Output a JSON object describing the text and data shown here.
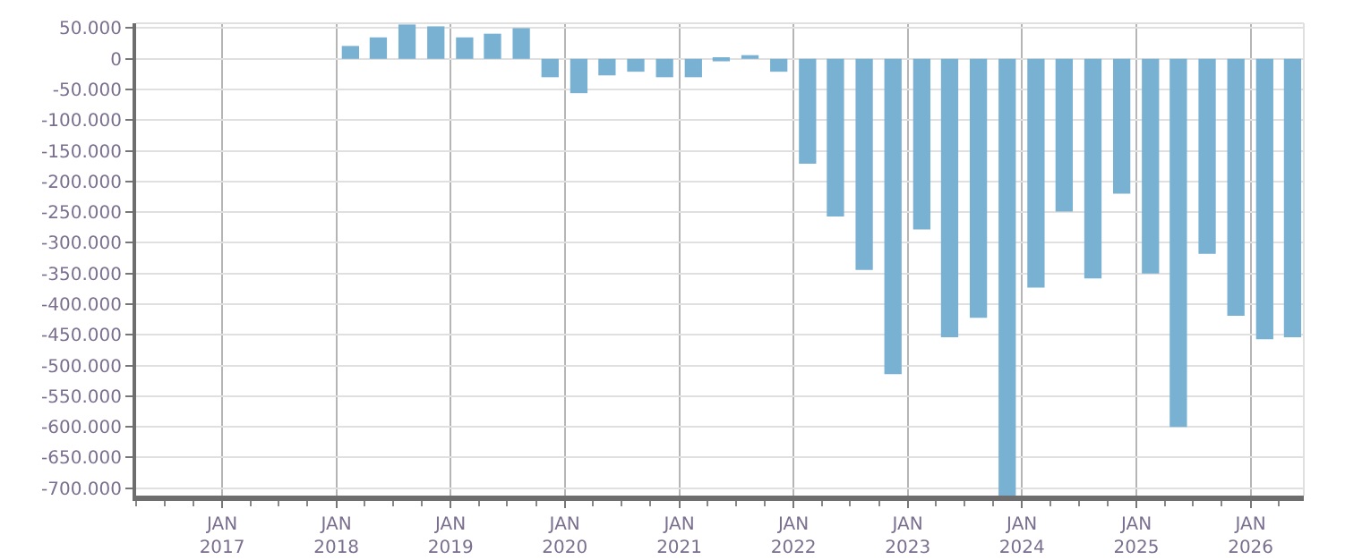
{
  "chart_data": {
    "type": "bar",
    "color": "#79b1d3",
    "grid": true,
    "x": [
      "2018-02-15",
      "2018-05-15",
      "2018-08-15",
      "2018-11-15",
      "2019-02-15",
      "2019-05-15",
      "2019-08-15",
      "2019-11-15",
      "2020-02-15",
      "2020-05-15",
      "2020-08-15",
      "2020-11-15",
      "2021-02-15",
      "2021-05-15",
      "2021-08-15",
      "2021-11-15",
      "2022-02-15",
      "2022-05-15",
      "2022-08-15",
      "2022-11-15",
      "2023-02-15",
      "2023-05-15",
      "2023-08-15",
      "2023-11-15",
      "2024-02-15",
      "2024-05-15",
      "2024-08-15",
      "2024-11-15",
      "2025-02-15",
      "2025-05-15",
      "2025-08-15",
      "2025-11-15",
      "2026-02-15",
      "2026-05-15"
    ],
    "values": [
      21000,
      35000,
      56000,
      53000,
      35000,
      41000,
      50000,
      -30000,
      -56000,
      -27000,
      -21000,
      -30000,
      -30000,
      -4000,
      6000,
      -21000,
      -171000,
      -257000,
      -344000,
      -514000,
      -278000,
      -454000,
      -422000,
      -712000,
      -373000,
      -249000,
      -358000,
      -220000,
      -350000,
      -600000,
      -318000,
      -419000,
      -457000,
      -454000
    ],
    "xlim": [
      "2016-04-01",
      "2026-06-20"
    ],
    "xticks": [
      {
        "value": "2016-04-01",
        "label": null
      },
      {
        "value": "2016-07-01",
        "label": null
      },
      {
        "value": "2016-10-01",
        "label": null
      },
      {
        "value": "2017-01-01",
        "label": "JAN\n2017"
      },
      {
        "value": "2017-04-01",
        "label": null
      },
      {
        "value": "2017-07-01",
        "label": null
      },
      {
        "value": "2017-10-01",
        "label": null
      },
      {
        "value": "2018-01-01",
        "label": "JAN\n2018"
      },
      {
        "value": "2018-04-01",
        "label": null
      },
      {
        "value": "2018-07-01",
        "label": null
      },
      {
        "value": "2018-10-01",
        "label": null
      },
      {
        "value": "2019-01-01",
        "label": "JAN\n2019"
      },
      {
        "value": "2019-04-01",
        "label": null
      },
      {
        "value": "2019-07-01",
        "label": null
      },
      {
        "value": "2019-10-01",
        "label": null
      },
      {
        "value": "2020-01-01",
        "label": "JAN\n2020"
      },
      {
        "value": "2020-04-01",
        "label": null
      },
      {
        "value": "2020-07-01",
        "label": null
      },
      {
        "value": "2020-10-01",
        "label": null
      },
      {
        "value": "2021-01-01",
        "label": "JAN\n2021"
      },
      {
        "value": "2021-04-01",
        "label": null
      },
      {
        "value": "2021-07-01",
        "label": null
      },
      {
        "value": "2021-10-01",
        "label": null
      },
      {
        "value": "2022-01-01",
        "label": "JAN\n2022"
      },
      {
        "value": "2022-04-01",
        "label": null
      },
      {
        "value": "2022-07-01",
        "label": null
      },
      {
        "value": "2022-10-01",
        "label": null
      },
      {
        "value": "2023-01-01",
        "label": "JAN\n2023"
      },
      {
        "value": "2023-04-01",
        "label": null
      },
      {
        "value": "2023-07-01",
        "label": null
      },
      {
        "value": "2023-10-01",
        "label": null
      },
      {
        "value": "2024-01-01",
        "label": "JAN\n2024"
      },
      {
        "value": "2024-04-01",
        "label": null
      },
      {
        "value": "2024-07-01",
        "label": null
      },
      {
        "value": "2024-10-01",
        "label": null
      },
      {
        "value": "2025-01-01",
        "label": "JAN\n2025"
      },
      {
        "value": "2025-04-01",
        "label": null
      },
      {
        "value": "2025-07-01",
        "label": null
      },
      {
        "value": "2025-10-01",
        "label": null
      },
      {
        "value": "2026-01-01",
        "label": "JAN\n2026"
      },
      {
        "value": "2026-04-01",
        "label": null
      }
    ],
    "ylim": [
      -712000,
      58000
    ],
    "yticks": [
      {
        "value": 50000,
        "label": "50.000"
      },
      0,
      {
        "value": -50000,
        "label": "-50.000"
      },
      {
        "value": -100000,
        "label": "-100.000"
      },
      {
        "value": -150000,
        "label": "-150.000"
      },
      {
        "value": -200000,
        "label": "-200.000"
      },
      {
        "value": -250000,
        "label": "-250.000"
      },
      {
        "value": -300000,
        "label": "-300.000"
      },
      {
        "value": -350000,
        "label": "-350.000"
      },
      {
        "value": -400000,
        "label": "-400.000"
      },
      {
        "value": -450000,
        "label": "-450.000"
      },
      {
        "value": -500000,
        "label": "-500.000"
      },
      {
        "value": -550000,
        "label": "-550.000"
      },
      {
        "value": -600000,
        "label": "-600.000"
      },
      {
        "value": -650000,
        "label": "-650.000"
      },
      {
        "value": -700000,
        "label": "-700.000"
      }
    ]
  }
}
